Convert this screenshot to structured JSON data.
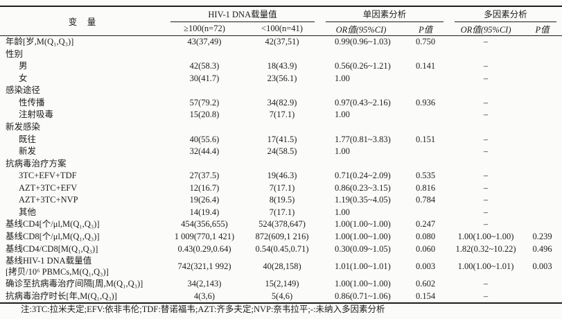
{
  "table": {
    "variable_header": "变　量",
    "groups": [
      {
        "label": "HIV-1 DNA载量值",
        "sub": [
          "≥100(n=72)",
          "<100(n=41)"
        ]
      },
      {
        "label": "单因素分析",
        "sub": [
          "OR值(95%CI)",
          "P值"
        ]
      },
      {
        "label": "多因素分析",
        "sub": [
          "OR值(95%CI)",
          "P值"
        ]
      }
    ],
    "rows": [
      {
        "label": "年龄[岁,M(Q₁,Q₃)]",
        "indent": 0,
        "cells": [
          "43(37,49)",
          "42(37,51)",
          "0.99(0.96~1.03)",
          "0.750",
          "–",
          ""
        ]
      },
      {
        "label": "性别",
        "indent": 0,
        "cells": [
          "",
          "",
          "",
          "",
          "",
          ""
        ]
      },
      {
        "label": "男",
        "indent": 1,
        "cells": [
          "42(58.3)",
          "18(43.9)",
          "0.56(0.26~1.21)",
          "0.141",
          "–",
          ""
        ]
      },
      {
        "label": "女",
        "indent": 1,
        "cells": [
          "30(41.7)",
          "23(56.1)",
          "1.00",
          "",
          "–",
          ""
        ]
      },
      {
        "label": "感染途径",
        "indent": 0,
        "cells": [
          "",
          "",
          "",
          "",
          "",
          ""
        ]
      },
      {
        "label": "性传播",
        "indent": 1,
        "cells": [
          "57(79.2)",
          "34(82.9)",
          "0.97(0.43~2.16)",
          "0.936",
          "–",
          ""
        ]
      },
      {
        "label": "注射吸毒",
        "indent": 1,
        "cells": [
          "15(20.8)",
          "7(17.1)",
          "1.00",
          "",
          "–",
          ""
        ]
      },
      {
        "label": "新发感染",
        "indent": 0,
        "cells": [
          "",
          "",
          "",
          "",
          "",
          ""
        ]
      },
      {
        "label": "既往",
        "indent": 1,
        "cells": [
          "40(55.6)",
          "17(41.5)",
          "1.77(0.81~3.83)",
          "0.151",
          "–",
          ""
        ]
      },
      {
        "label": "新发",
        "indent": 1,
        "cells": [
          "32(44.4)",
          "24(58.5)",
          "1.00",
          "",
          "–",
          ""
        ]
      },
      {
        "label": "抗病毒治疗方案",
        "indent": 0,
        "cells": [
          "",
          "",
          "",
          "",
          "",
          ""
        ]
      },
      {
        "label": "3TC+EFV+TDF",
        "indent": 1,
        "cells": [
          "27(37.5)",
          "19(46.3)",
          "0.71(0.24~2.09)",
          "0.535",
          "–",
          ""
        ]
      },
      {
        "label": "AZT+3TC+EFV",
        "indent": 1,
        "cells": [
          "12(16.7)",
          "7(17.1)",
          "0.86(0.23~3.15)",
          "0.816",
          "–",
          ""
        ]
      },
      {
        "label": "AZT+3TC+NVP",
        "indent": 1,
        "cells": [
          "19(26.4)",
          "8(19.5)",
          "1.19(0.35~4.05)",
          "0.784",
          "–",
          ""
        ]
      },
      {
        "label": "其他",
        "indent": 1,
        "cells": [
          "14(19.4)",
          "7(17.1)",
          "1.00",
          "",
          "–",
          ""
        ]
      },
      {
        "label": "基线CD4[个/μl,M(Q₁,Q₃)]",
        "indent": 0,
        "cells": [
          "454(356,655)",
          "524(378,647)",
          "1.00(1.00~1.00)",
          "0.247",
          "–",
          ""
        ]
      },
      {
        "label": "基线CD8[个/μl,M(Q₁,Q₃)]",
        "indent": 0,
        "cells": [
          "1 009(770,1 421)",
          "872(609,1 216)",
          "1.00(1.00~1.00)",
          "0.080",
          "1.00(1.00~1.00)",
          "0.239"
        ]
      },
      {
        "label": "基线CD4/CD8[M(Q₁,Q₃)]",
        "indent": 0,
        "cells": [
          "0.43(0.29,0.64)",
          "0.54(0.45,0.71)",
          "0.30(0.09~1.05)",
          "0.060",
          "1.82(0.32~10.22)",
          "0.496"
        ]
      },
      {
        "label": "基线HIV-1 DNA载量值",
        "label2": "[拷贝/10⁶ PBMCs,M(Q₁,Q₃)]",
        "indent": 0,
        "cells": [
          "742(321,1 992)",
          "40(28,158)",
          "1.01(1.00~1.01)",
          "0.003",
          "1.00(1.00~1.01)",
          "0.003"
        ]
      },
      {
        "label": "确诊至抗病毒治疗间隔[周,M(Q₁,Q₃)]",
        "indent": 0,
        "cells": [
          "34(2,143)",
          "15(2,149)",
          "1.00(1.00~1.00)",
          "0.602",
          "–",
          ""
        ]
      },
      {
        "label": "抗病毒治疗时长[年,M(Q₁,Q₃)]",
        "indent": 0,
        "cells": [
          "4(3,6)",
          "5(4,6)",
          "0.86(0.71~1.06)",
          "0.154",
          "–",
          ""
        ]
      }
    ]
  },
  "note": "注:3TC:拉米夫定;EFV:依非韦伦;TDF:替诺福韦;AZT:齐多夫定;NVP:奈韦拉平;-:未纳入多因素分析"
}
